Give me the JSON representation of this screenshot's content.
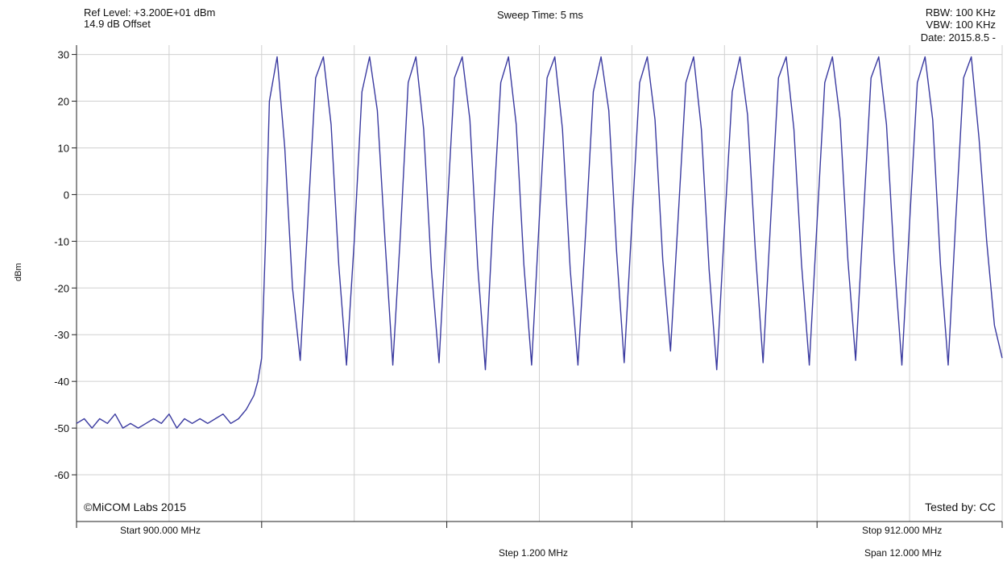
{
  "header": {
    "ref_level": "Ref Level: +3.200E+01 dBm",
    "offset": "14.9 dB Offset",
    "sweep_time": "Sweep Time: 5 ms",
    "rbw": "RBW: 100 KHz",
    "vbw": "VBW: 100 KHz",
    "date": "Date: 2015.8.5 -"
  },
  "footer": {
    "copyright": "©MiCOM Labs 2015",
    "tested_by": "Tested by: CC",
    "start": "Start 900.000 MHz",
    "stop": "Stop 912.000 MHz",
    "step": "Step 1.200 MHz",
    "span": "Span 12.000 MHz"
  },
  "colors": {
    "trace": "#3a3aa0",
    "grid": "#d0d0d0",
    "axis": "#222222"
  },
  "chart_data": {
    "type": "line",
    "title": "",
    "xlabel": "",
    "ylabel": "dBm",
    "xlim": [
      900.0,
      912.0
    ],
    "ylim": [
      -70,
      32
    ],
    "y_ticks": [
      30,
      20,
      10,
      0,
      -10,
      -20,
      -30,
      -40,
      -50,
      -60
    ],
    "x_grid_step": 1.2,
    "grid": true,
    "series": [
      {
        "x": [
          900.0,
          900.1,
          900.2,
          900.3,
          900.4,
          900.5,
          900.6,
          900.7,
          900.8,
          900.9,
          901.0,
          901.1,
          901.2,
          901.3,
          901.4,
          901.5,
          901.6,
          901.7,
          901.8,
          901.9,
          902.0,
          902.1,
          902.2,
          902.3,
          902.35,
          902.4,
          902.45,
          902.5,
          902.6,
          902.7,
          902.8,
          902.9,
          903.0,
          903.1,
          903.2,
          903.3,
          903.4,
          903.5,
          903.6,
          903.7,
          903.8,
          903.9,
          904.0,
          904.1,
          904.2,
          904.3,
          904.4,
          904.5,
          904.6,
          904.7,
          904.8,
          904.9,
          905.0,
          905.1,
          905.2,
          905.3,
          905.4,
          905.5,
          905.6,
          905.7,
          905.8,
          905.9,
          906.0,
          906.1,
          906.2,
          906.3,
          906.4,
          906.5,
          906.6,
          906.7,
          906.8,
          906.9,
          907.0,
          907.1,
          907.2,
          907.3,
          907.4,
          907.5,
          907.6,
          907.7,
          907.8,
          907.9,
          908.0,
          908.1,
          908.2,
          908.3,
          908.4,
          908.5,
          908.6,
          908.7,
          908.8,
          908.9,
          909.0,
          909.1,
          909.2,
          909.3,
          909.4,
          909.5,
          909.6,
          909.7,
          909.8,
          909.9,
          910.0,
          910.1,
          910.2,
          910.3,
          910.4,
          910.5,
          910.6,
          910.7,
          910.8,
          910.9,
          911.0,
          911.1,
          911.2,
          911.3,
          911.4,
          911.5,
          911.6,
          911.7,
          911.8,
          911.9,
          912.0
        ],
        "y": [
          -49,
          -48,
          -50,
          -48,
          -49,
          -47,
          -50,
          -49,
          -50,
          -49,
          -48,
          -49,
          -47,
          -50,
          -48,
          -49,
          -48,
          -49,
          -48,
          -47,
          -49,
          -48,
          -46,
          -43,
          -40,
          -35,
          -10,
          20,
          29.5,
          10,
          -20,
          -35.5,
          -5,
          25,
          29.5,
          15,
          -15,
          -36.5,
          -10,
          22,
          29.5,
          18,
          -10,
          -36.5,
          -8,
          24,
          29.5,
          14,
          -16,
          -36,
          -5,
          25,
          29.5,
          16,
          -15,
          -37.5,
          -5,
          24,
          29.5,
          15,
          -15,
          -36.5,
          -5,
          25,
          29.5,
          14,
          -16,
          -36.5,
          -8,
          22,
          29.5,
          18,
          -12,
          -36,
          -6,
          24,
          29.5,
          16,
          -14,
          -33.5,
          -5,
          24,
          29.5,
          14,
          -16,
          -37.5,
          -7,
          22,
          29.5,
          17,
          -12,
          -36,
          -5,
          25,
          29.5,
          14,
          -15,
          -36.5,
          -6,
          24,
          29.5,
          16,
          -14,
          -35.5,
          -5,
          25,
          29.5,
          15,
          -14,
          -36.5,
          -6,
          24,
          29.5,
          16,
          -15,
          -36.5,
          -5,
          25,
          29.5,
          12,
          -10,
          -28,
          -35
        ]
      }
    ]
  }
}
